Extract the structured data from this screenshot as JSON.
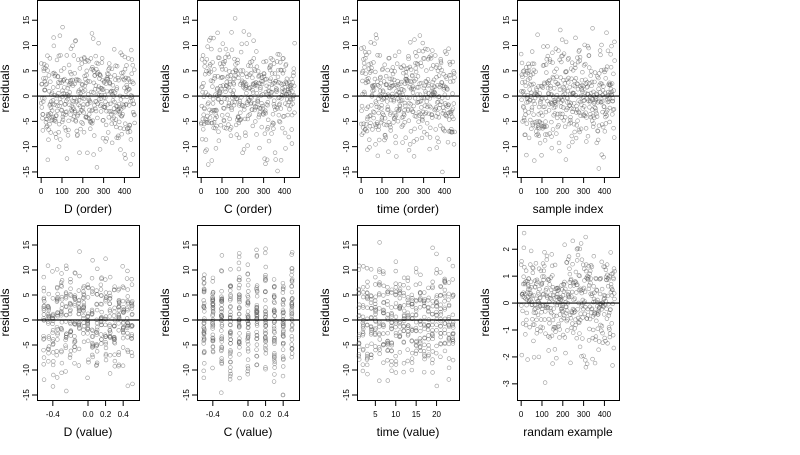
{
  "chart_data": [
    {
      "type": "scatter",
      "xlabel": "D (order)",
      "ylabel": "residuals",
      "xlim": [
        -20,
        470
      ],
      "ylim": [
        -16,
        19
      ],
      "xticks": [
        0,
        100,
        200,
        300,
        400
      ],
      "xtick_labels": [
        "0",
        "100",
        "200",
        "300",
        "400"
      ],
      "yticks": [
        -15,
        -10,
        -5,
        0,
        5,
        10,
        15
      ],
      "ytick_labels": [
        "-15",
        "-10",
        "-5",
        "0",
        "5",
        "10",
        "15"
      ],
      "gen": {
        "mode": "index",
        "n": 450,
        "sd": 5,
        "seed": 11,
        "min": -15,
        "max": 18.5
      }
    },
    {
      "type": "scatter",
      "xlabel": "C (order)",
      "ylabel": "residuals",
      "xlim": [
        -20,
        470
      ],
      "ylim": [
        -16,
        19
      ],
      "xticks": [
        0,
        100,
        200,
        300,
        400
      ],
      "xtick_labels": [
        "0",
        "100",
        "200",
        "300",
        "400"
      ],
      "yticks": [
        -15,
        -10,
        -5,
        0,
        5,
        10,
        15
      ],
      "ytick_labels": [
        "-15",
        "-10",
        "-5",
        "0",
        "5",
        "10",
        "15"
      ],
      "gen": {
        "mode": "index",
        "n": 450,
        "sd": 5,
        "seed": 23,
        "min": -15,
        "max": 18.5
      }
    },
    {
      "type": "scatter",
      "xlabel": "time (order)",
      "ylabel": "residuals",
      "xlim": [
        -20,
        470
      ],
      "ylim": [
        -16,
        19
      ],
      "xticks": [
        0,
        100,
        200,
        300,
        400
      ],
      "xtick_labels": [
        "0",
        "100",
        "200",
        "300",
        "400"
      ],
      "yticks": [
        -15,
        -10,
        -5,
        0,
        5,
        10,
        15
      ],
      "ytick_labels": [
        "-15",
        "-10",
        "-5",
        "0",
        "5",
        "10",
        "15"
      ],
      "gen": {
        "mode": "index",
        "n": 450,
        "sd": 5,
        "seed": 37,
        "min": -15,
        "max": 18.5
      }
    },
    {
      "type": "scatter",
      "xlabel": "sample index",
      "ylabel": "residuals",
      "xlim": [
        -20,
        470
      ],
      "ylim": [
        -16,
        19
      ],
      "xticks": [
        0,
        100,
        200,
        300,
        400
      ],
      "xtick_labels": [
        "0",
        "100",
        "200",
        "300",
        "400"
      ],
      "yticks": [
        -15,
        -10,
        -5,
        0,
        5,
        10,
        15
      ],
      "ytick_labels": [
        "-15",
        "-10",
        "-5",
        "0",
        "5",
        "10",
        "15"
      ],
      "gen": {
        "mode": "index",
        "n": 450,
        "sd": 5,
        "seed": 41,
        "min": -15,
        "max": 18.5
      }
    },
    {
      "type": "scatter",
      "xlabel": "D (value)",
      "ylabel": "residuals",
      "xlim": [
        -0.58,
        0.58
      ],
      "ylim": [
        -16,
        19
      ],
      "xticks": [
        -0.4,
        0,
        0.2,
        0.4
      ],
      "xtick_labels": [
        "-0.4",
        "0.0",
        "0.2",
        "0.4"
      ],
      "yticks": [
        -15,
        -10,
        -5,
        0,
        5,
        10,
        15
      ],
      "ytick_labels": [
        "-15",
        "-10",
        "-5",
        "0",
        "5",
        "10",
        "15"
      ],
      "gen": {
        "mode": "levels",
        "levels": [
          -0.5,
          -0.45,
          -0.4,
          -0.35,
          -0.3,
          -0.25,
          -0.2,
          -0.15,
          -0.1,
          -0.05,
          0,
          0.05,
          0.1,
          0.15,
          0.2,
          0.25,
          0.3,
          0.35,
          0.4,
          0.45,
          0.5
        ],
        "per_level": 21,
        "jitter": 0.006,
        "sd": 5,
        "seed": 53,
        "min": -15,
        "max": 18.5
      }
    },
    {
      "type": "scatter",
      "xlabel": "C (value)",
      "ylabel": "residuals",
      "xlim": [
        -0.58,
        0.58
      ],
      "ylim": [
        -16,
        19
      ],
      "xticks": [
        -0.4,
        0,
        0.2,
        0.4
      ],
      "xtick_labels": [
        "-0.4",
        "0.0",
        "0.2",
        "0.4"
      ],
      "yticks": [
        -15,
        -10,
        -5,
        0,
        5,
        10,
        15
      ],
      "ytick_labels": [
        "-15",
        "-10",
        "-5",
        "0",
        "5",
        "10",
        "15"
      ],
      "gen": {
        "mode": "levels",
        "levels": [
          -0.5,
          -0.4,
          -0.3,
          -0.2,
          -0.1,
          0,
          0.1,
          0.2,
          0.3,
          0.4,
          0.5
        ],
        "per_level": 40,
        "jitter": 0.004,
        "sd": 5,
        "seed": 67,
        "min": -15,
        "max": 18.5
      }
    },
    {
      "type": "scatter",
      "xlabel": "time (value)",
      "ylabel": "residuals",
      "xlim": [
        0.5,
        25.5
      ],
      "ylim": [
        -16,
        19
      ],
      "xticks": [
        5,
        10,
        15,
        20
      ],
      "xtick_labels": [
        "5",
        "10",
        "15",
        "20"
      ],
      "yticks": [
        -15,
        -10,
        -5,
        0,
        5,
        10,
        15
      ],
      "ytick_labels": [
        "-15",
        "-10",
        "-5",
        "0",
        "5",
        "10",
        "15"
      ],
      "gen": {
        "mode": "levels",
        "levels": [
          1,
          2,
          3,
          4,
          5,
          6,
          7,
          8,
          9,
          10,
          11,
          12,
          13,
          14,
          15,
          16,
          17,
          18,
          19,
          20,
          21,
          22,
          23,
          24
        ],
        "per_level": 19,
        "jitter": 0.08,
        "sd": 5,
        "seed": 79,
        "min": -15,
        "max": 18.5
      }
    },
    {
      "type": "scatter",
      "xlabel": "randam example",
      "ylabel": "residuals",
      "xlim": [
        -20,
        470
      ],
      "ylim": [
        -3.6,
        2.9
      ],
      "xticks": [
        0,
        100,
        200,
        300,
        400
      ],
      "xtick_labels": [
        "0",
        "100",
        "200",
        "300",
        "400"
      ],
      "yticks": [
        -3,
        -2,
        -1,
        0,
        1,
        2
      ],
      "ytick_labels": [
        "-3",
        "-2",
        "-1",
        "0",
        "1",
        "2"
      ],
      "gen": {
        "mode": "index",
        "n": 450,
        "sd": 1,
        "seed": 97,
        "min": -3.3,
        "max": 2.6
      }
    }
  ]
}
